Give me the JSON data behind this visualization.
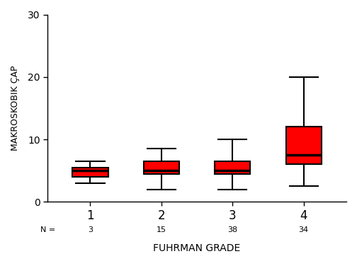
{
  "groups": [
    "1",
    "2",
    "3",
    "4"
  ],
  "n_labels": [
    "3",
    "15",
    "38",
    "34"
  ],
  "boxes": [
    {
      "whislo": 3.0,
      "q1": 4.0,
      "med": 5.0,
      "q3": 5.5,
      "whishi": 6.5
    },
    {
      "whislo": 2.0,
      "q1": 4.5,
      "med": 5.0,
      "q3": 6.5,
      "whishi": 8.5
    },
    {
      "whislo": 2.0,
      "q1": 4.5,
      "med": 5.0,
      "q3": 6.5,
      "whishi": 10.0
    },
    {
      "whislo": 2.5,
      "q1": 6.0,
      "med": 7.5,
      "q3": 12.0,
      "whishi": 20.0
    }
  ],
  "box_color": "#FF0000",
  "median_color": "#000000",
  "whisker_color": "#000000",
  "box_width": 0.5,
  "ylabel": "MAKROSKOBIK ÇAP",
  "xlabel": "FUHRMAN GRADE",
  "ylim": [
    0,
    30
  ],
  "yticks": [
    0,
    10,
    20,
    30
  ],
  "bg_color": "#FFFFFF",
  "linewidth": 1.5,
  "median_linewidth": 2.5,
  "figsize": [
    5.04,
    3.93
  ],
  "dpi": 100
}
